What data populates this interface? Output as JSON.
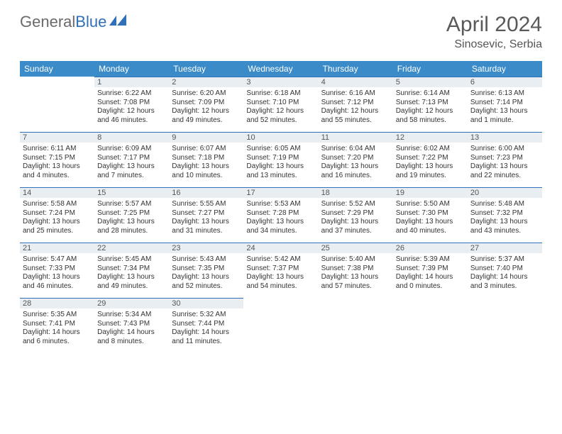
{
  "brand": {
    "part1": "General",
    "part2": "Blue"
  },
  "title": "April 2024",
  "location": "Sinosevic, Serbia",
  "weekdays": [
    "Sunday",
    "Monday",
    "Tuesday",
    "Wednesday",
    "Thursday",
    "Friday",
    "Saturday"
  ],
  "colors": {
    "header_bg": "#3b8bc9",
    "border": "#2f70b8",
    "daynum_bg": "#e9eef2",
    "text": "#333333",
    "brand_gray": "#6a6a6a",
    "brand_blue": "#2f70b8"
  },
  "weeks": [
    [
      null,
      {
        "d": "1",
        "sr": "6:22 AM",
        "ss": "7:08 PM",
        "dl": "12 hours and 46 minutes."
      },
      {
        "d": "2",
        "sr": "6:20 AM",
        "ss": "7:09 PM",
        "dl": "12 hours and 49 minutes."
      },
      {
        "d": "3",
        "sr": "6:18 AM",
        "ss": "7:10 PM",
        "dl": "12 hours and 52 minutes."
      },
      {
        "d": "4",
        "sr": "6:16 AM",
        "ss": "7:12 PM",
        "dl": "12 hours and 55 minutes."
      },
      {
        "d": "5",
        "sr": "6:14 AM",
        "ss": "7:13 PM",
        "dl": "12 hours and 58 minutes."
      },
      {
        "d": "6",
        "sr": "6:13 AM",
        "ss": "7:14 PM",
        "dl": "13 hours and 1 minute."
      }
    ],
    [
      {
        "d": "7",
        "sr": "6:11 AM",
        "ss": "7:15 PM",
        "dl": "13 hours and 4 minutes."
      },
      {
        "d": "8",
        "sr": "6:09 AM",
        "ss": "7:17 PM",
        "dl": "13 hours and 7 minutes."
      },
      {
        "d": "9",
        "sr": "6:07 AM",
        "ss": "7:18 PM",
        "dl": "13 hours and 10 minutes."
      },
      {
        "d": "10",
        "sr": "6:05 AM",
        "ss": "7:19 PM",
        "dl": "13 hours and 13 minutes."
      },
      {
        "d": "11",
        "sr": "6:04 AM",
        "ss": "7:20 PM",
        "dl": "13 hours and 16 minutes."
      },
      {
        "d": "12",
        "sr": "6:02 AM",
        "ss": "7:22 PM",
        "dl": "13 hours and 19 minutes."
      },
      {
        "d": "13",
        "sr": "6:00 AM",
        "ss": "7:23 PM",
        "dl": "13 hours and 22 minutes."
      }
    ],
    [
      {
        "d": "14",
        "sr": "5:58 AM",
        "ss": "7:24 PM",
        "dl": "13 hours and 25 minutes."
      },
      {
        "d": "15",
        "sr": "5:57 AM",
        "ss": "7:25 PM",
        "dl": "13 hours and 28 minutes."
      },
      {
        "d": "16",
        "sr": "5:55 AM",
        "ss": "7:27 PM",
        "dl": "13 hours and 31 minutes."
      },
      {
        "d": "17",
        "sr": "5:53 AM",
        "ss": "7:28 PM",
        "dl": "13 hours and 34 minutes."
      },
      {
        "d": "18",
        "sr": "5:52 AM",
        "ss": "7:29 PM",
        "dl": "13 hours and 37 minutes."
      },
      {
        "d": "19",
        "sr": "5:50 AM",
        "ss": "7:30 PM",
        "dl": "13 hours and 40 minutes."
      },
      {
        "d": "20",
        "sr": "5:48 AM",
        "ss": "7:32 PM",
        "dl": "13 hours and 43 minutes."
      }
    ],
    [
      {
        "d": "21",
        "sr": "5:47 AM",
        "ss": "7:33 PM",
        "dl": "13 hours and 46 minutes."
      },
      {
        "d": "22",
        "sr": "5:45 AM",
        "ss": "7:34 PM",
        "dl": "13 hours and 49 minutes."
      },
      {
        "d": "23",
        "sr": "5:43 AM",
        "ss": "7:35 PM",
        "dl": "13 hours and 52 minutes."
      },
      {
        "d": "24",
        "sr": "5:42 AM",
        "ss": "7:37 PM",
        "dl": "13 hours and 54 minutes."
      },
      {
        "d": "25",
        "sr": "5:40 AM",
        "ss": "7:38 PM",
        "dl": "13 hours and 57 minutes."
      },
      {
        "d": "26",
        "sr": "5:39 AM",
        "ss": "7:39 PM",
        "dl": "14 hours and 0 minutes."
      },
      {
        "d": "27",
        "sr": "5:37 AM",
        "ss": "7:40 PM",
        "dl": "14 hours and 3 minutes."
      }
    ],
    [
      {
        "d": "28",
        "sr": "5:35 AM",
        "ss": "7:41 PM",
        "dl": "14 hours and 6 minutes."
      },
      {
        "d": "29",
        "sr": "5:34 AM",
        "ss": "7:43 PM",
        "dl": "14 hours and 8 minutes."
      },
      {
        "d": "30",
        "sr": "5:32 AM",
        "ss": "7:44 PM",
        "dl": "14 hours and 11 minutes."
      },
      null,
      null,
      null,
      null
    ]
  ],
  "labels": {
    "sunrise": "Sunrise:",
    "sunset": "Sunset:",
    "daylight": "Daylight:"
  }
}
